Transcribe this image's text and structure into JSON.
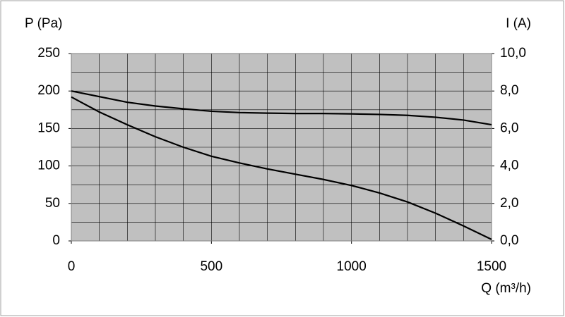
{
  "chart_data": {
    "type": "line",
    "ylabel": "P (Pa)",
    "y2label": "I (A)",
    "xlabel": "Q (m³/h)",
    "x": [
      0,
      100,
      200,
      300,
      400,
      500,
      600,
      700,
      800,
      900,
      1000,
      1100,
      1200,
      1300,
      1400,
      1500
    ],
    "series": [
      {
        "color": "#000000",
        "values": [
          192,
          172,
          155,
          139,
          125,
          113,
          104,
          96,
          89,
          82,
          74,
          64,
          52,
          37,
          20,
          2
        ]
      },
      {
        "color": "#000000",
        "axis": "y2",
        "values": [
          8.0,
          7.7,
          7.4,
          7.2,
          7.05,
          6.92,
          6.85,
          6.82,
          6.8,
          6.8,
          6.78,
          6.75,
          6.7,
          6.6,
          6.45,
          6.2
        ]
      }
    ],
    "xlim": [
      0,
      1500
    ],
    "xticks": [
      0,
      500,
      1000,
      1500
    ],
    "ylim": [
      0,
      250
    ],
    "yticks": [
      0,
      50,
      100,
      150,
      200,
      250
    ],
    "y2lim": [
      0,
      10
    ],
    "y2ticks": [
      {
        "value": 0,
        "label": "0,0"
      },
      {
        "value": 2,
        "label": "2,0"
      },
      {
        "value": 4,
        "label": "4,0"
      },
      {
        "value": 6,
        "label": "6,0"
      },
      {
        "value": 8,
        "label": "8,0"
      },
      {
        "value": 10,
        "label": "10,0"
      }
    ],
    "grid": true,
    "xminor": 5,
    "yminor": 2,
    "plot_background": "#c0c0c0"
  }
}
